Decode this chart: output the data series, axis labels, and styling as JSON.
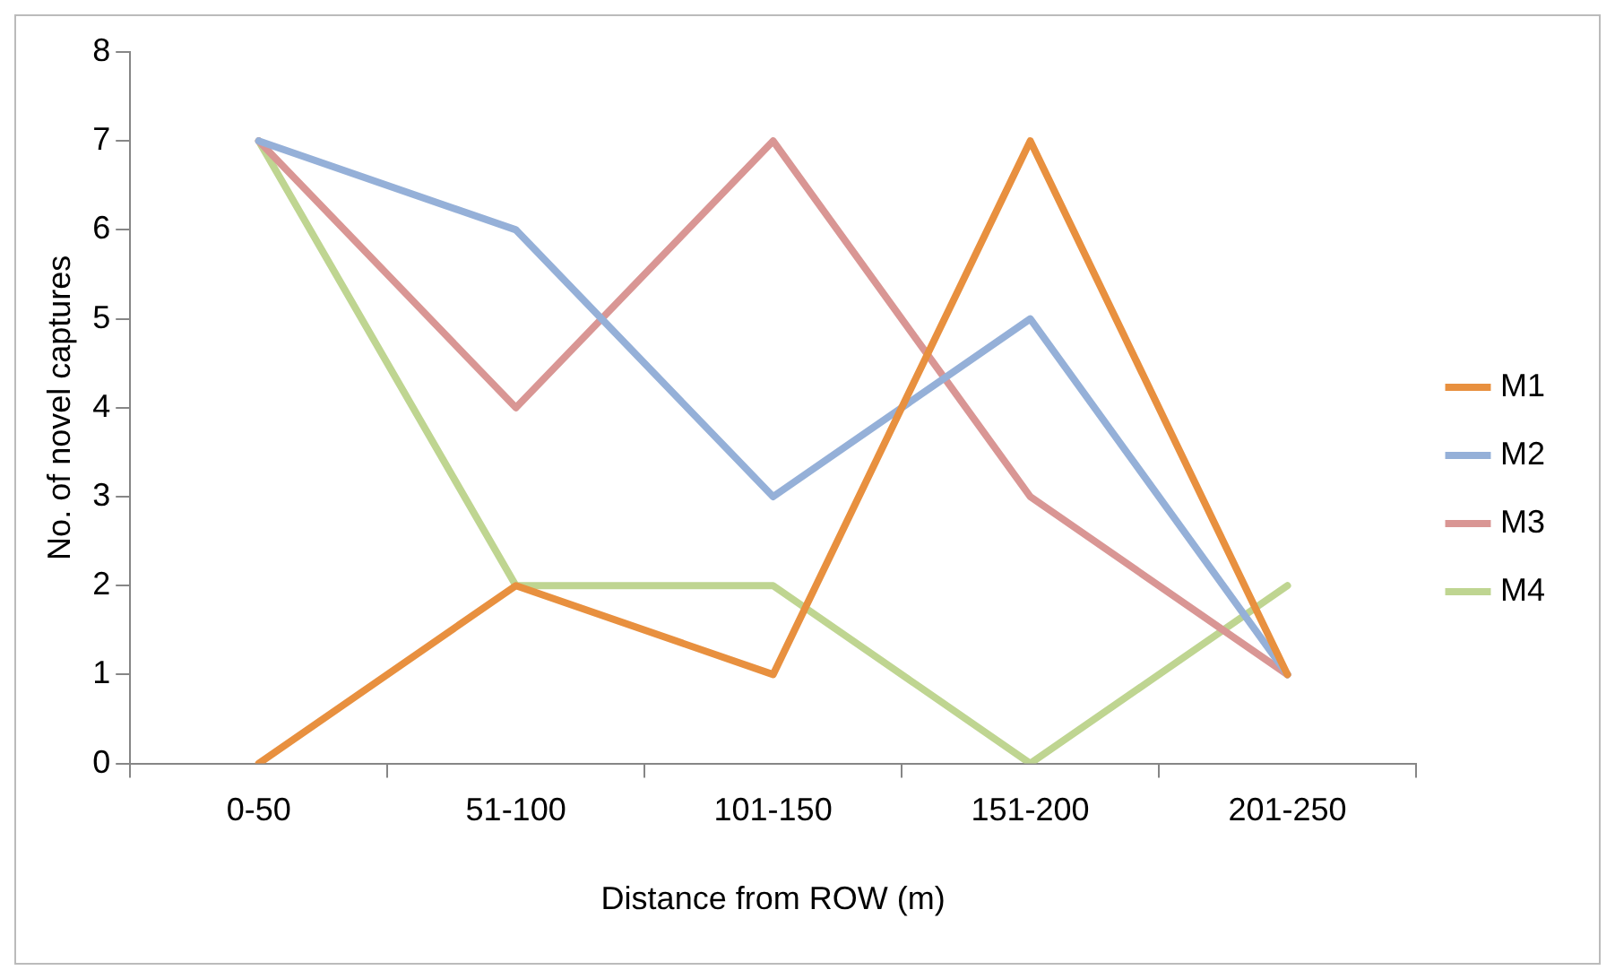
{
  "chart_data": {
    "type": "line",
    "xlabel": "Distance from ROW (m)",
    "ylabel": "No. of novel captures",
    "categories": [
      "0-50",
      "51-100",
      "101-150",
      "151-200",
      "201-250"
    ],
    "series": [
      {
        "name": "M1",
        "color": "#e8903f",
        "values": [
          0,
          2,
          1,
          7,
          1
        ]
      },
      {
        "name": "M2",
        "color": "#95b0d8",
        "values": [
          7,
          6,
          3,
          5,
          1
        ]
      },
      {
        "name": "M3",
        "color": "#d99694",
        "values": [
          7,
          4,
          7,
          3,
          1
        ]
      },
      {
        "name": "M4",
        "color": "#bfd591",
        "values": [
          7,
          2,
          2,
          0,
          2
        ]
      }
    ],
    "ylim": [
      0,
      8
    ],
    "yticks": [
      0,
      1,
      2,
      3,
      4,
      5,
      6,
      7,
      8
    ],
    "grid": false,
    "legend": "right",
    "marker": "none",
    "line_style": "solid"
  }
}
